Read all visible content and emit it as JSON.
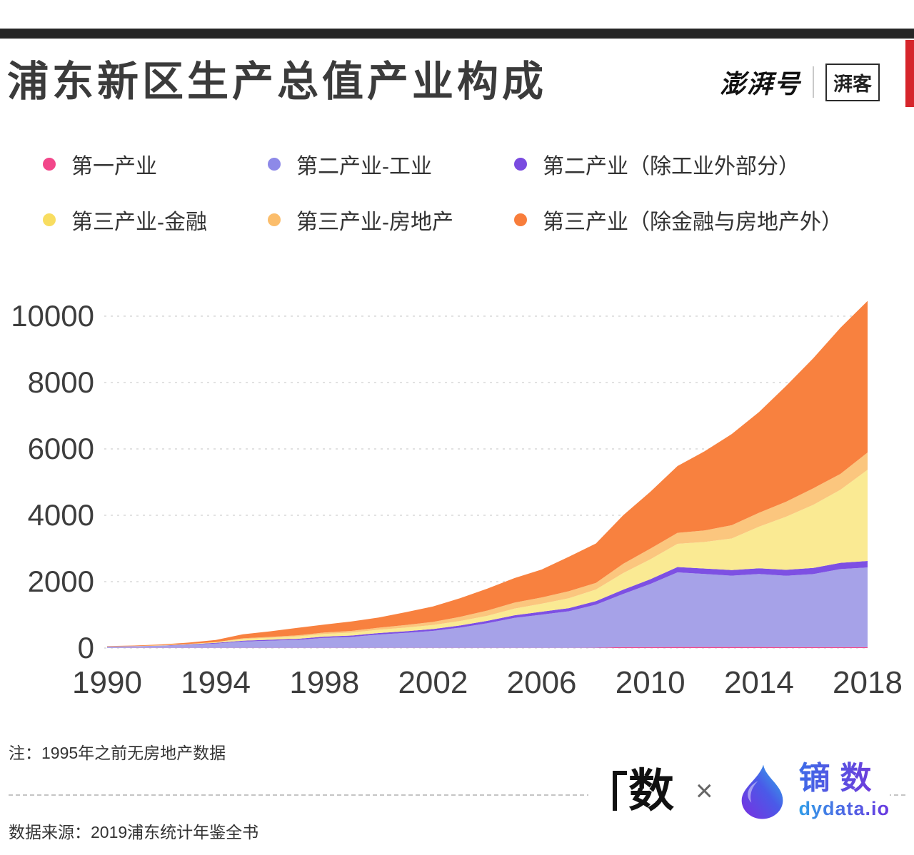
{
  "header": {
    "top_bar_color": "#262626",
    "brand": {
      "name": "澎湃号",
      "tag": "湃客",
      "accent_color": "#d6252b"
    }
  },
  "chart_data": {
    "type": "area",
    "stacked": true,
    "title": "浦东新区生产总值产业构成",
    "xlabel": "",
    "ylabel": "",
    "grid": true,
    "legend_position": "top",
    "ylim": [
      0,
      10000
    ],
    "yticks": [
      0,
      2000,
      4000,
      6000,
      8000,
      10000
    ],
    "xticks": [
      1990,
      1994,
      1998,
      2002,
      2006,
      2010,
      2014,
      2018
    ],
    "x": [
      1990,
      1991,
      1992,
      1993,
      1994,
      1995,
      1996,
      1997,
      1998,
      1999,
      2000,
      2001,
      2002,
      2003,
      2004,
      2005,
      2006,
      2007,
      2008,
      2009,
      2010,
      2011,
      2012,
      2013,
      2014,
      2015,
      2016,
      2017,
      2018
    ],
    "series": [
      {
        "name": "第一产业",
        "color": "#f2478a",
        "fill": "#f2478a",
        "values": [
          3,
          4,
          4,
          5,
          5,
          6,
          6,
          6,
          6,
          6,
          6,
          6,
          6,
          6,
          7,
          7,
          7,
          7,
          8,
          28,
          28,
          30,
          30,
          30,
          30,
          28,
          28,
          28,
          28
        ]
      },
      {
        "name": "第二产业-工业",
        "color": "#8d89e8",
        "fill": "#a6a2e8",
        "values": [
          38,
          45,
          62,
          92,
          130,
          190,
          215,
          240,
          300,
          330,
          400,
          450,
          510,
          610,
          740,
          900,
          1000,
          1100,
          1300,
          1600,
          1900,
          2250,
          2200,
          2150,
          2200,
          2150,
          2200,
          2350,
          2400
        ]
      },
      {
        "name": "第二产业（除工业外部分）",
        "color": "#7a4be0",
        "fill": "#7d50e3",
        "values": [
          4,
          5,
          8,
          13,
          19,
          26,
          29,
          32,
          38,
          41,
          45,
          50,
          56,
          64,
          72,
          80,
          88,
          95,
          105,
          130,
          145,
          160,
          165,
          170,
          175,
          180,
          185,
          190,
          195
        ]
      },
      {
        "name": "第三产业-金融",
        "color": "#f8dd60",
        "fill": "#faea93",
        "values": [
          3,
          5,
          9,
          15,
          25,
          50,
          60,
          70,
          80,
          88,
          100,
          110,
          120,
          135,
          150,
          200,
          240,
          300,
          350,
          500,
          600,
          700,
          800,
          950,
          1250,
          1600,
          1900,
          2200,
          2750
        ]
      },
      {
        "name": "第三产业-房地产",
        "color": "#fbbd6b",
        "fill": "#fbc67e",
        "values": [
          0,
          0,
          0,
          0,
          0,
          20,
          26,
          33,
          42,
          52,
          62,
          78,
          95,
          125,
          160,
          180,
          190,
          210,
          200,
          280,
          320,
          330,
          350,
          400,
          420,
          450,
          500,
          480,
          520
        ]
      },
      {
        "name": "第三产业（除金融与房地产外）",
        "color": "#f87d3b",
        "fill": "#f8813f",
        "values": [
          12,
          16,
          25,
          39,
          61,
          122,
          168,
          227,
          242,
          283,
          307,
          388,
          464,
          564,
          661,
          741,
          840,
          1039,
          1188,
          1463,
          1714,
          2014,
          2384,
          2749,
          3034,
          3490,
          3919,
          4403,
          4567
        ]
      }
    ]
  },
  "footer": {
    "note": "注：1995年之前无房地产数据",
    "source": "数据来源：2019浦东统计年鉴全书",
    "logo_left": "数",
    "multiply": "×",
    "brand_cn": "镝数",
    "brand_domain": "dydata.io"
  }
}
